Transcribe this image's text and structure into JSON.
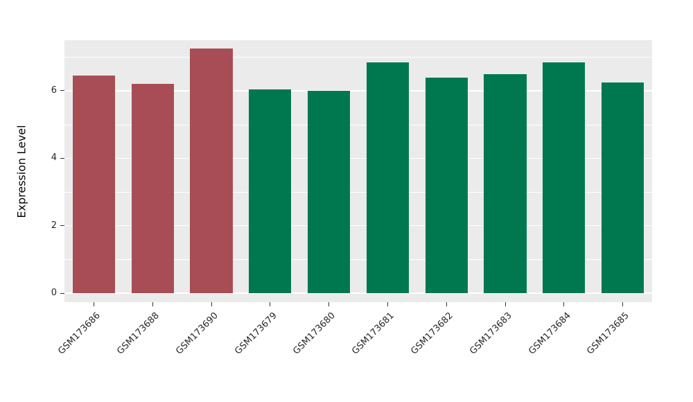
{
  "chart_data": {
    "type": "bar",
    "title": "",
    "xlabel": "",
    "ylabel": "Expression Level",
    "ylim": [
      0,
      7.5
    ],
    "yticks": [
      0,
      2,
      4,
      6
    ],
    "minor_yticks": [
      1,
      3,
      5,
      7
    ],
    "grid": "on",
    "legend": "none",
    "panel_background": "#ebebeb",
    "grid_color": "#ffffff",
    "categories": [
      "GSM173686",
      "GSM173688",
      "GSM173690",
      "GSM173679",
      "GSM173680",
      "GSM173681",
      "GSM173682",
      "GSM173683",
      "GSM173684",
      "GSM173685"
    ],
    "values": [
      6.45,
      6.2,
      7.25,
      6.05,
      6.0,
      6.85,
      6.4,
      6.5,
      6.85,
      6.25
    ],
    "bar_colors": [
      "#a84d55",
      "#a84d55",
      "#a84d55",
      "#00784f",
      "#00784f",
      "#00784f",
      "#00784f",
      "#00784f",
      "#00784f",
      "#00784f"
    ],
    "group_colors": {
      "red_group": "#a84d55",
      "green_group": "#00784f"
    }
  }
}
